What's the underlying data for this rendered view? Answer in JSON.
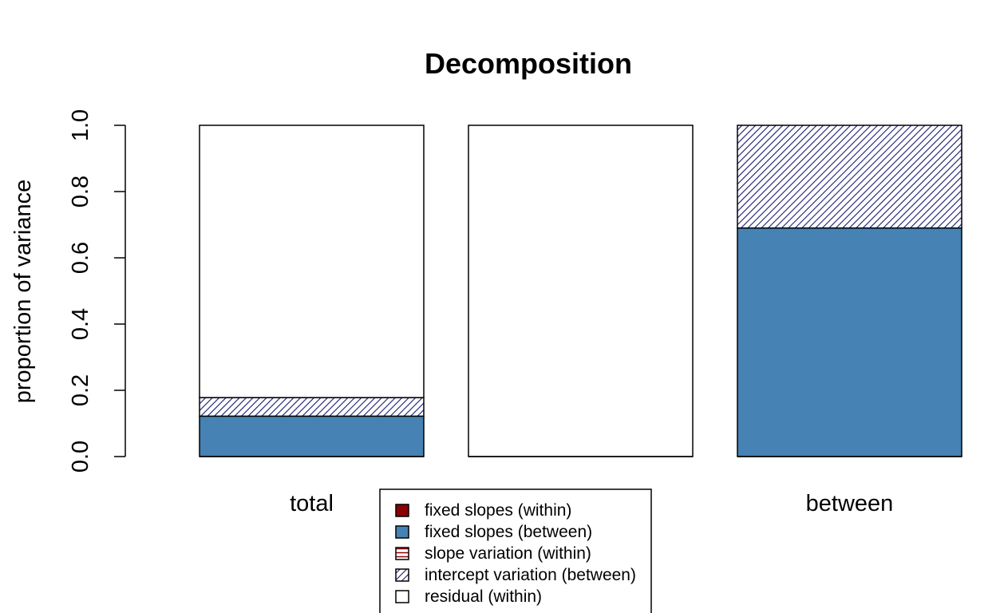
{
  "chart_data": {
    "type": "bar",
    "stacked": true,
    "title": "Decomposition",
    "xlabel": "",
    "ylabel": "proportion of variance",
    "ylim": [
      0,
      1
    ],
    "yticks": [
      "0.0",
      "0.2",
      "0.4",
      "0.6",
      "0.8",
      "1.0"
    ],
    "categories": [
      "total",
      "",
      "between"
    ],
    "series": [
      {
        "name": "fixed slopes (within)",
        "values": [
          0,
          0,
          0
        ],
        "color": "#8b0000",
        "pattern": "solid"
      },
      {
        "name": "fixed slopes (between)",
        "values": [
          0.122,
          0,
          0.69
        ],
        "color": "#4682b4",
        "pattern": "solid"
      },
      {
        "name": "slope variation (within)",
        "values": [
          0,
          0,
          0
        ],
        "color": "#8b0000",
        "pattern": "horizontal"
      },
      {
        "name": "intercept variation (between)",
        "values": [
          0.056,
          0,
          0.31
        ],
        "color": "#191970",
        "pattern": "diagonal"
      },
      {
        "name": "residual (within)",
        "values": [
          0.822,
          1.0,
          0
        ],
        "color": "#ffffff",
        "pattern": "solid"
      }
    ],
    "legend_position": "bottom-center"
  }
}
